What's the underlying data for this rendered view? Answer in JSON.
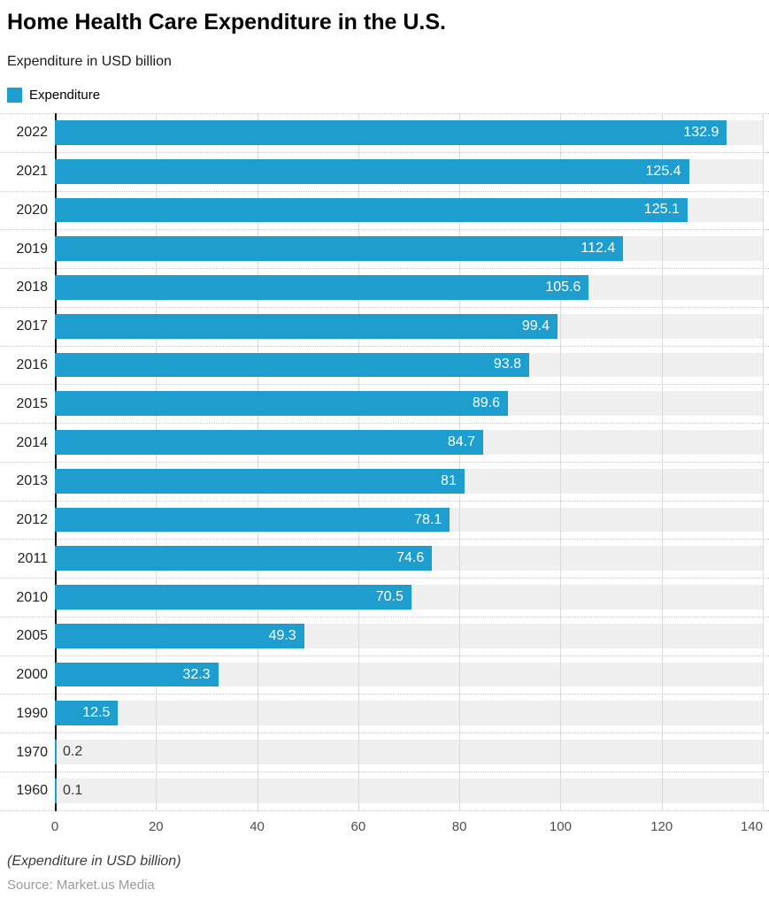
{
  "header": {
    "title": "Home Health Care Expenditure in the U.S.",
    "subtitle": "Expenditure in USD billion"
  },
  "legend": {
    "label": "Expenditure",
    "swatch_color": "#1e9ecf"
  },
  "chart_data": {
    "type": "bar",
    "orientation": "horizontal",
    "title": "Home Health Care Expenditure in the U.S.",
    "subtitle": "Expenditure in USD billion",
    "series_name": "Expenditure",
    "categories": [
      "2022",
      "2021",
      "2020",
      "2019",
      "2018",
      "2017",
      "2016",
      "2015",
      "2014",
      "2013",
      "2012",
      "2011",
      "2010",
      "2005",
      "2000",
      "1990",
      "1970",
      "1960"
    ],
    "values": [
      132.9,
      125.4,
      125.1,
      112.4,
      105.6,
      99.4,
      93.8,
      89.6,
      84.7,
      81,
      78.1,
      74.6,
      70.5,
      49.3,
      32.3,
      12.5,
      0.2,
      0.1
    ],
    "value_labels": [
      "132.9",
      "125.4",
      "125.1",
      "112.4",
      "105.6",
      "99.4",
      "93.8",
      "89.6",
      "84.7",
      "81",
      "78.1",
      "74.6",
      "70.5",
      "49.3",
      "32.3",
      "12.5",
      "0.2",
      "0.1"
    ],
    "xlim": [
      0,
      140
    ],
    "xticks": [
      0,
      20,
      40,
      60,
      80,
      100,
      120,
      140
    ],
    "xlabel": "",
    "ylabel": "",
    "grid": true,
    "legend_position": "top-left",
    "bar_color": "#1e9ecf",
    "band_color": "#efefef",
    "grid_color": "#d9d9d9",
    "axis_color": "#111111"
  },
  "footer": {
    "note": "(Expenditure in USD billion)",
    "source": "Source: Market.us Media"
  }
}
